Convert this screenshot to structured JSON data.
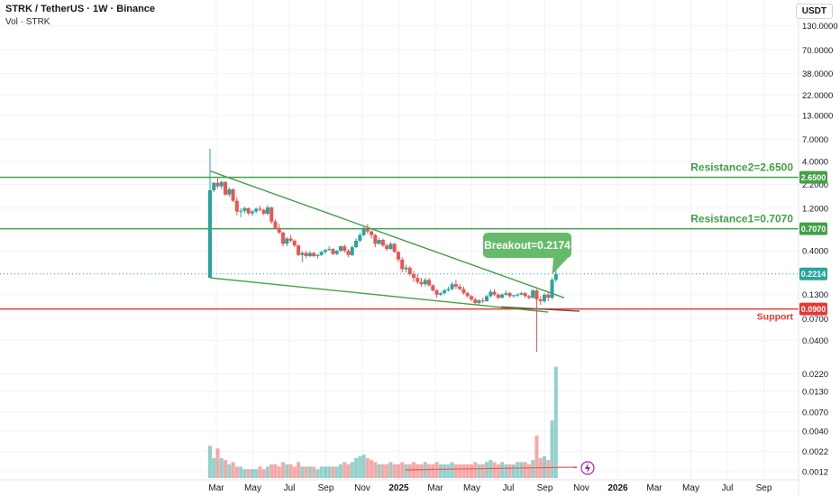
{
  "header": {
    "title": "STRK / TetherUS · 1W · Binance",
    "volume_label": "Vol · STRK"
  },
  "currency": "USDT",
  "colors": {
    "up": "#26a69a",
    "down": "#ef5350",
    "trend": "#43a047",
    "support": "#e53935",
    "grid": "#f0f3fa",
    "axis_text": "#131722"
  },
  "chart_data": {
    "type": "candlestick",
    "scale": "log",
    "x_ticks": [
      "Mar",
      "May",
      "Jul",
      "Sep",
      "Nov",
      "2025",
      "Mar",
      "May",
      "Jul",
      "Sep",
      "Nov",
      "2026",
      "Mar",
      "May",
      "Jul",
      "Sep"
    ],
    "price_ticks": [
      "130.0000",
      "70.0000",
      "38.0000",
      "22.0000",
      "13.0000",
      "7.0000",
      "4.0000",
      "2.2000",
      "1.2000",
      "0.4000",
      "0.1300",
      "0.0700",
      "0.0400",
      "0.0220",
      "0.0130",
      "0.0070",
      "0.0040",
      "0.0022",
      "0.0012"
    ],
    "price_ticks_hidden_by_badges": [
      "2.6500",
      "0.7070",
      "0.2214",
      "0.0900"
    ],
    "badges": [
      {
        "label": "2.6500",
        "value": 2.65,
        "color": "#43a047"
      },
      {
        "label": "0.7070",
        "value": 0.707,
        "color": "#43a047"
      },
      {
        "label": "0.2214",
        "value": 0.2214,
        "color": "#26a69a"
      },
      {
        "label": "0.0900",
        "value": 0.09,
        "color": "#e53935"
      }
    ],
    "levels": [
      {
        "name": "Resistance2",
        "label": "Resistance2=2.6500",
        "value": 2.65,
        "color": "#43a047"
      },
      {
        "name": "Resistance1",
        "label": "Resistance1=0.7070",
        "value": 0.707,
        "color": "#43a047"
      },
      {
        "name": "Support",
        "label": "Support",
        "value": 0.09,
        "color": "#e53935"
      }
    ],
    "annotation": {
      "label": "Breakout=0.2174",
      "value": 0.2174
    },
    "last_price": 0.2214,
    "trendlines": [
      {
        "name": "upper",
        "from": {
          "date": "2024-02-20",
          "price": 3.1
        },
        "to": {
          "date": "2025-11-25",
          "price": 0.12
        }
      },
      {
        "name": "lower",
        "from": {
          "date": "2024-02-20",
          "price": 0.2
        },
        "to": {
          "date": "2025-10-27",
          "price": 0.083
        }
      }
    ],
    "candles": [
      [
        "2024-02-19",
        0.2,
        5.5,
        0.2,
        1.9
      ],
      [
        "2024-02-26",
        1.9,
        2.35,
        1.8,
        2.3
      ],
      [
        "2024-03-04",
        2.3,
        2.6,
        2.0,
        2.1
      ],
      [
        "2024-03-11",
        2.1,
        2.45,
        1.95,
        2.35
      ],
      [
        "2024-03-18",
        2.35,
        2.4,
        1.65,
        1.7
      ],
      [
        "2024-03-25",
        1.7,
        2.05,
        1.6,
        1.95
      ],
      [
        "2024-04-01",
        1.95,
        2.0,
        1.4,
        1.45
      ],
      [
        "2024-04-08",
        1.45,
        1.6,
        1.0,
        1.1
      ],
      [
        "2024-04-15",
        1.1,
        1.2,
        0.95,
        1.12
      ],
      [
        "2024-04-22",
        1.12,
        1.25,
        1.05,
        1.2
      ],
      [
        "2024-04-29",
        1.2,
        1.22,
        1.0,
        1.05
      ],
      [
        "2024-05-06",
        1.05,
        1.15,
        0.98,
        1.1
      ],
      [
        "2024-05-13",
        1.1,
        1.22,
        1.05,
        1.18
      ],
      [
        "2024-05-20",
        1.18,
        1.28,
        1.1,
        1.15
      ],
      [
        "2024-05-27",
        1.15,
        1.18,
        1.0,
        1.04
      ],
      [
        "2024-06-03",
        1.04,
        1.3,
        1.0,
        1.22
      ],
      [
        "2024-06-10",
        1.22,
        1.25,
        0.8,
        0.85
      ],
      [
        "2024-06-17",
        0.85,
        0.9,
        0.7,
        0.72
      ],
      [
        "2024-06-24",
        0.72,
        0.8,
        0.62,
        0.64
      ],
      [
        "2024-07-01",
        0.64,
        0.66,
        0.45,
        0.48
      ],
      [
        "2024-07-08",
        0.48,
        0.57,
        0.45,
        0.55
      ],
      [
        "2024-07-15",
        0.55,
        0.6,
        0.5,
        0.52
      ],
      [
        "2024-07-22",
        0.52,
        0.54,
        0.44,
        0.46
      ],
      [
        "2024-07-29",
        0.46,
        0.47,
        0.35,
        0.36
      ],
      [
        "2024-08-05",
        0.36,
        0.4,
        0.3,
        0.38
      ],
      [
        "2024-08-12",
        0.38,
        0.4,
        0.33,
        0.35
      ],
      [
        "2024-08-19",
        0.35,
        0.4,
        0.34,
        0.38
      ],
      [
        "2024-08-26",
        0.38,
        0.39,
        0.34,
        0.35
      ],
      [
        "2024-09-02",
        0.35,
        0.37,
        0.33,
        0.36
      ],
      [
        "2024-09-09",
        0.36,
        0.4,
        0.35,
        0.39
      ],
      [
        "2024-09-16",
        0.39,
        0.42,
        0.37,
        0.41
      ],
      [
        "2024-09-23",
        0.41,
        0.45,
        0.4,
        0.42
      ],
      [
        "2024-09-30",
        0.42,
        0.43,
        0.36,
        0.37
      ],
      [
        "2024-10-07",
        0.37,
        0.41,
        0.36,
        0.4
      ],
      [
        "2024-10-14",
        0.4,
        0.46,
        0.39,
        0.45
      ],
      [
        "2024-10-21",
        0.45,
        0.47,
        0.38,
        0.4
      ],
      [
        "2024-10-28",
        0.4,
        0.42,
        0.34,
        0.36
      ],
      [
        "2024-11-04",
        0.36,
        0.46,
        0.35,
        0.44
      ],
      [
        "2024-11-11",
        0.44,
        0.55,
        0.43,
        0.52
      ],
      [
        "2024-11-18",
        0.52,
        0.64,
        0.5,
        0.6
      ],
      [
        "2024-11-25",
        0.6,
        0.75,
        0.58,
        0.7
      ],
      [
        "2024-12-02",
        0.7,
        0.8,
        0.62,
        0.66
      ],
      [
        "2024-12-09",
        0.66,
        0.68,
        0.55,
        0.6
      ],
      [
        "2024-12-16",
        0.6,
        0.62,
        0.44,
        0.48
      ],
      [
        "2024-12-23",
        0.48,
        0.56,
        0.47,
        0.53
      ],
      [
        "2024-12-30",
        0.53,
        0.55,
        0.44,
        0.46
      ],
      [
        "2025-01-06",
        0.46,
        0.48,
        0.4,
        0.42
      ],
      [
        "2025-01-13",
        0.42,
        0.5,
        0.41,
        0.48
      ],
      [
        "2025-01-20",
        0.48,
        0.49,
        0.38,
        0.39
      ],
      [
        "2025-01-27",
        0.39,
        0.4,
        0.3,
        0.32
      ],
      [
        "2025-02-03",
        0.32,
        0.34,
        0.23,
        0.25
      ],
      [
        "2025-02-10",
        0.25,
        0.28,
        0.23,
        0.26
      ],
      [
        "2025-02-17",
        0.26,
        0.27,
        0.21,
        0.22
      ],
      [
        "2025-02-24",
        0.22,
        0.24,
        0.18,
        0.2
      ],
      [
        "2025-03-03",
        0.2,
        0.22,
        0.17,
        0.18
      ],
      [
        "2025-03-10",
        0.18,
        0.2,
        0.16,
        0.17
      ],
      [
        "2025-03-17",
        0.17,
        0.2,
        0.16,
        0.19
      ],
      [
        "2025-03-24",
        0.19,
        0.2,
        0.16,
        0.165
      ],
      [
        "2025-03-31",
        0.165,
        0.17,
        0.14,
        0.145
      ],
      [
        "2025-04-07",
        0.145,
        0.15,
        0.12,
        0.13
      ],
      [
        "2025-04-14",
        0.13,
        0.14,
        0.125,
        0.135
      ],
      [
        "2025-04-21",
        0.135,
        0.15,
        0.13,
        0.145
      ],
      [
        "2025-04-28",
        0.145,
        0.16,
        0.14,
        0.15
      ],
      [
        "2025-05-05",
        0.15,
        0.18,
        0.145,
        0.17
      ],
      [
        "2025-05-12",
        0.17,
        0.19,
        0.15,
        0.16
      ],
      [
        "2025-05-19",
        0.16,
        0.17,
        0.145,
        0.15
      ],
      [
        "2025-05-26",
        0.15,
        0.16,
        0.13,
        0.135
      ],
      [
        "2025-06-02",
        0.135,
        0.14,
        0.12,
        0.125
      ],
      [
        "2025-06-09",
        0.125,
        0.13,
        0.11,
        0.115
      ],
      [
        "2025-06-16",
        0.115,
        0.12,
        0.1,
        0.105
      ],
      [
        "2025-06-23",
        0.105,
        0.115,
        0.1,
        0.112
      ],
      [
        "2025-06-30",
        0.112,
        0.12,
        0.105,
        0.11
      ],
      [
        "2025-07-07",
        0.11,
        0.13,
        0.108,
        0.125
      ],
      [
        "2025-07-14",
        0.125,
        0.15,
        0.12,
        0.14
      ],
      [
        "2025-07-21",
        0.14,
        0.15,
        0.125,
        0.13
      ],
      [
        "2025-07-28",
        0.13,
        0.135,
        0.115,
        0.12
      ],
      [
        "2025-08-04",
        0.12,
        0.135,
        0.118,
        0.13
      ],
      [
        "2025-08-11",
        0.13,
        0.145,
        0.125,
        0.135
      ],
      [
        "2025-08-18",
        0.135,
        0.14,
        0.12,
        0.125
      ],
      [
        "2025-08-25",
        0.125,
        0.13,
        0.12,
        0.128
      ],
      [
        "2025-09-01",
        0.128,
        0.135,
        0.122,
        0.13
      ],
      [
        "2025-09-08",
        0.13,
        0.14,
        0.128,
        0.135
      ],
      [
        "2025-09-15",
        0.135,
        0.14,
        0.12,
        0.125
      ],
      [
        "2025-09-22",
        0.125,
        0.13,
        0.115,
        0.12
      ],
      [
        "2025-09-29",
        0.12,
        0.15,
        0.118,
        0.145
      ],
      [
        "2025-10-06",
        0.145,
        0.15,
        0.03,
        0.115
      ],
      [
        "2025-10-13",
        0.115,
        0.125,
        0.1,
        0.11
      ],
      [
        "2025-10-20",
        0.11,
        0.135,
        0.105,
        0.13
      ],
      [
        "2025-10-27",
        0.13,
        0.14,
        0.11,
        0.12
      ],
      [
        "2025-11-03",
        0.12,
        0.2,
        0.115,
        0.19
      ],
      [
        "2025-11-10",
        0.19,
        0.25,
        0.18,
        0.2214
      ]
    ],
    "volume": [
      0.0026,
      0.0018,
      0.0024,
      0.0018,
      0.0017,
      0.0015,
      0.0016,
      0.0014,
      0.0014,
      0.0013,
      0.0013,
      0.0013,
      0.0013,
      0.0014,
      0.0013,
      0.0014,
      0.0015,
      0.0015,
      0.0014,
      0.0016,
      0.0015,
      0.0015,
      0.0014,
      0.0016,
      0.0014,
      0.0014,
      0.0014,
      0.0014,
      0.0013,
      0.0014,
      0.0014,
      0.0014,
      0.0014,
      0.0014,
      0.0015,
      0.0016,
      0.0015,
      0.0016,
      0.0018,
      0.0019,
      0.002,
      0.0018,
      0.0017,
      0.0016,
      0.0015,
      0.0015,
      0.0015,
      0.0016,
      0.0015,
      0.0015,
      0.0016,
      0.0015,
      0.0015,
      0.0016,
      0.0015,
      0.0015,
      0.0016,
      0.0015,
      0.0015,
      0.0016,
      0.0015,
      0.0015,
      0.0015,
      0.0016,
      0.0015,
      0.0015,
      0.0015,
      0.0015,
      0.0015,
      0.0016,
      0.0015,
      0.0015,
      0.0016,
      0.0017,
      0.0016,
      0.0015,
      0.0016,
      0.0015,
      0.0015,
      0.0015,
      0.0016,
      0.0016,
      0.0016,
      0.0015,
      0.0017,
      0.0035,
      0.0018,
      0.0019,
      0.0017,
      0.0055,
      0.027
    ]
  }
}
